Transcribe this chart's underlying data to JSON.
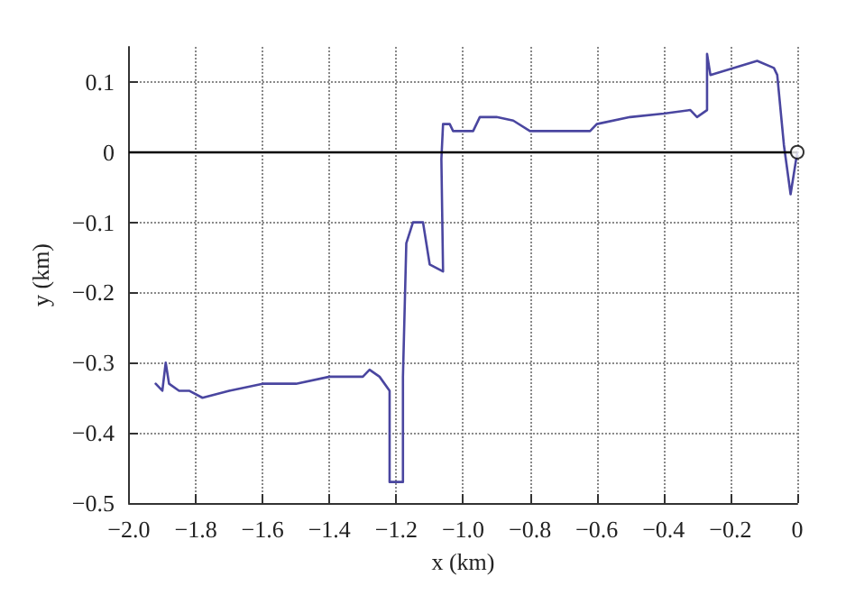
{
  "chart_data": {
    "type": "line",
    "xlabel": "x (km)",
    "ylabel": "y (km)",
    "xlim": [
      -2,
      0
    ],
    "xticks": [
      {
        "value": -2,
        "label": "−2.0"
      },
      -1.8,
      -1.6,
      -1.4,
      -1.2,
      {
        "value": -1,
        "label": "−1.0"
      },
      -0.8,
      -0.6,
      -0.4,
      -0.2,
      0
    ],
    "ylim": [
      -0.5,
      0.15
    ],
    "yticks": [
      -0.5,
      -0.4,
      -0.3,
      -0.2,
      -0.1,
      0,
      0.1
    ],
    "grid": true,
    "line_style": "solid",
    "marker": "none",
    "ref_lines": [
      {
        "axis": "y",
        "value": 0,
        "color": "#000000"
      }
    ],
    "series": [
      {
        "color": "#4a46a0",
        "x": [
          -1.92,
          -1.9,
          -1.89,
          -1.88,
          -1.85,
          -1.82,
          -1.78,
          -1.7,
          -1.6,
          -1.5,
          -1.4,
          -1.3,
          -1.28,
          -1.25,
          -1.22,
          -1.22,
          -1.18,
          -1.18,
          -1.17,
          -1.15,
          -1.12,
          -1.1,
          -1.06,
          -1.065,
          -1.06,
          -1.04,
          -1.03,
          -0.97,
          -0.95,
          -0.9,
          -0.85,
          -0.8,
          -0.62,
          -0.6,
          -0.5,
          -0.4,
          -0.32,
          -0.3,
          -0.27,
          -0.27,
          -0.26,
          -0.12,
          -0.07,
          -0.06,
          -0.04,
          -0.02,
          0
        ],
        "values": [
          -0.33,
          -0.34,
          -0.3,
          -0.33,
          -0.34,
          -0.34,
          -0.35,
          -0.34,
          -0.33,
          -0.33,
          -0.32,
          -0.32,
          -0.31,
          -0.32,
          -0.34,
          -0.47,
          -0.47,
          -0.32,
          -0.13,
          -0.1,
          -0.1,
          -0.16,
          -0.17,
          -0.01,
          0.04,
          0.04,
          0.03,
          0.03,
          0.05,
          0.05,
          0.045,
          0.03,
          0.03,
          0.04,
          0.05,
          0.055,
          0.06,
          0.05,
          0.06,
          0.14,
          0.11,
          0.13,
          0.12,
          0.11,
          0.01,
          -0.06,
          0
        ]
      },
      {
        "type": "scatter",
        "marker": "circle",
        "color": "#ffffff",
        "x": [
          0
        ],
        "values": [
          0
        ]
      }
    ]
  }
}
